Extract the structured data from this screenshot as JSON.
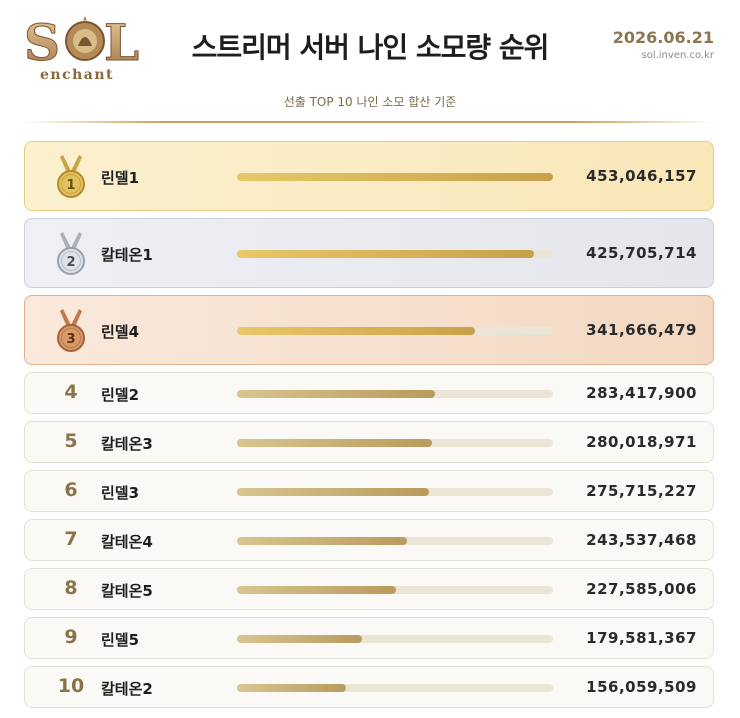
{
  "header": {
    "logo_text": "SOL",
    "logo_sub": "enchant",
    "title": "스트리머 서버 나인 소모량 순위",
    "date": "2026.06.21",
    "site": "sol.inven.co.kr",
    "subtitle": "선출 TOP 10 나인 소모 합산 기준"
  },
  "colors": {
    "gold": "#d6b45a",
    "silver": "#b8bcc6",
    "bronze": "#c27a4a",
    "bar_fill": "#c7a14a",
    "bar_track": "#ebe5d6",
    "rank_text": "#8a7447"
  },
  "chart_data": {
    "type": "bar",
    "orientation": "horizontal",
    "ranks": [
      "1",
      "2",
      "3",
      "4",
      "5",
      "6",
      "7",
      "8",
      "9",
      "10"
    ],
    "categories": [
      "린델1",
      "칼테온1",
      "린델4",
      "린델2",
      "칼테온3",
      "린델3",
      "칼테온4",
      "칼테온5",
      "린델5",
      "칼테온2"
    ],
    "values": [
      453046157,
      425705714,
      341666479,
      283417900,
      280018971,
      275715227,
      243537468,
      227585006,
      179581367,
      156059509
    ],
    "value_labels": [
      "453,046,157",
      "425,705,714",
      "341,666,479",
      "283,417,900",
      "280,018,971",
      "275,715,227",
      "243,537,468",
      "227,585,006",
      "179,581,367",
      "156,059,509"
    ],
    "medals": [
      "gold-medal-icon",
      "silver-medal-icon",
      "bronze-medal-icon"
    ],
    "xlim": [
      0,
      453046157
    ],
    "grid": false,
    "legend": "none"
  }
}
